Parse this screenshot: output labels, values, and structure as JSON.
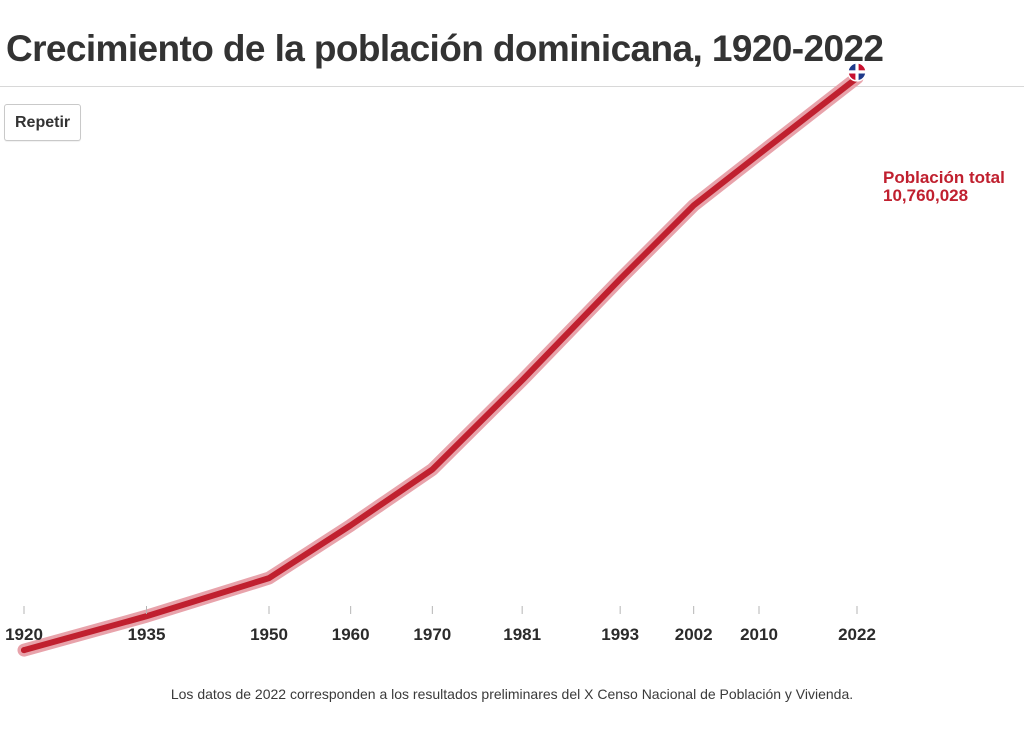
{
  "header": {
    "title": "Crecimiento de la población dominicana, 1920-2022"
  },
  "controls": {
    "replay_label": "Repetir"
  },
  "footer": {
    "note": "Los datos de 2022 corresponden a los resultados preliminares del X Censo Nacional de Población y Vivienda."
  },
  "colors": {
    "line": "#c0202f",
    "halo": "#e8a3ab",
    "accent": "#c0202f"
  },
  "chart_data": {
    "type": "line",
    "title": "Crecimiento de la población dominicana, 1920-2022",
    "xlabel": "",
    "ylabel": "",
    "categories": [
      "1920",
      "1935",
      "1950",
      "1960",
      "1970",
      "1981",
      "1993",
      "2002",
      "2010",
      "2022"
    ],
    "series": [
      {
        "values": [
          894665,
          1479417,
          2135872,
          3047070,
          4009458,
          5545741,
          7293390,
          8562541,
          9445281,
          10760028
        ]
      }
    ],
    "ylim": [
      0,
      11000000
    ],
    "grid": false,
    "end_label": {
      "name": "Población total",
      "value": "10,760,028"
    },
    "marker_icon": "dominican-flag-icon"
  }
}
